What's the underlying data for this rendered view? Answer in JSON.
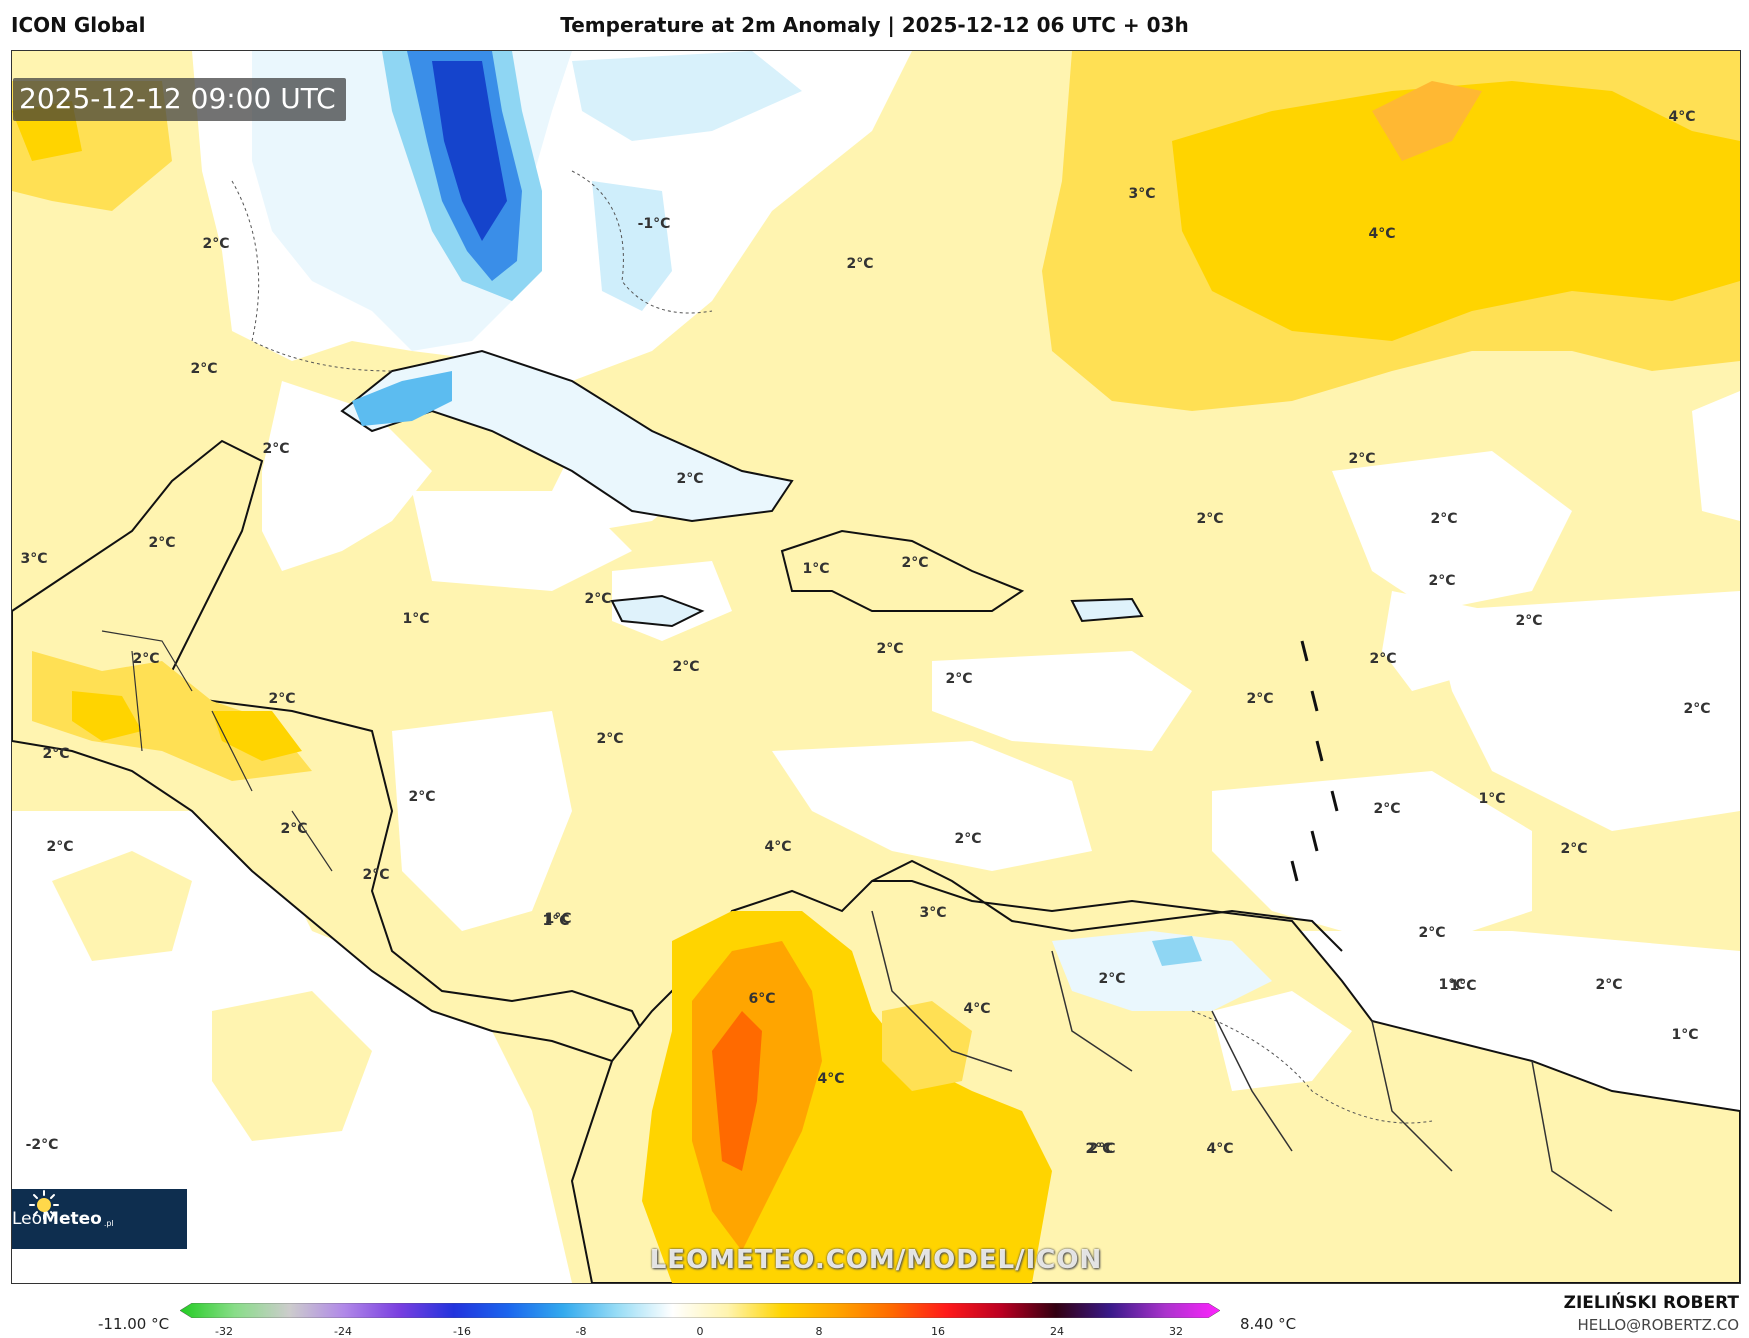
{
  "header": {
    "model": "ICON Global",
    "title": "Temperature at 2m Anomaly | 2025-12-12 06 UTC + 03h"
  },
  "map": {
    "valid_time": "2025-12-12 09:00 UTC",
    "watermark": "LEOMETEO.COM/MODEL/ICON",
    "logo": {
      "brand_a": "Leo",
      "brand_b": "Meteo",
      "tld": ".pl",
      "icon": "sun-icon"
    },
    "labels": [
      {
        "text": "4°C"
      },
      {
        "text": "3°C"
      },
      {
        "text": "4°C"
      },
      {
        "text": "-1°C"
      },
      {
        "text": "2°C"
      },
      {
        "text": "2°C"
      },
      {
        "text": "2°C"
      },
      {
        "text": "2°C"
      },
      {
        "text": "2°C"
      },
      {
        "text": "2°C"
      },
      {
        "text": "3°C"
      },
      {
        "text": "2°C"
      },
      {
        "text": "2°C"
      },
      {
        "text": "1°C"
      },
      {
        "text": "2°C"
      },
      {
        "text": "2°C"
      },
      {
        "text": "2°C"
      },
      {
        "text": "2°C"
      },
      {
        "text": "1°C"
      },
      {
        "text": "2°C"
      },
      {
        "text": "2°C"
      },
      {
        "text": "2°C"
      },
      {
        "text": "2°C"
      },
      {
        "text": "2°C"
      },
      {
        "text": "2°C"
      },
      {
        "text": "2°C"
      },
      {
        "text": "2°C"
      },
      {
        "text": "2°C"
      },
      {
        "text": "2°C"
      },
      {
        "text": "2°C"
      },
      {
        "text": "2°C"
      },
      {
        "text": "2°C"
      },
      {
        "text": "2°C"
      },
      {
        "text": "1°C"
      },
      {
        "text": "2°C"
      },
      {
        "text": "2°C"
      },
      {
        "text": "1°C"
      },
      {
        "text": "2°C"
      },
      {
        "text": "4°C"
      },
      {
        "text": "2°C"
      },
      {
        "text": "3°C"
      },
      {
        "text": "2°C"
      },
      {
        "text": "1°C"
      },
      {
        "text": "2°C"
      },
      {
        "text": "2°C"
      },
      {
        "text": "1°C"
      },
      {
        "text": "1°C"
      },
      {
        "text": "6°C"
      },
      {
        "text": "4°C"
      },
      {
        "text": "2°C"
      },
      {
        "text": "1°C"
      },
      {
        "text": "4°C"
      },
      {
        "text": "-2°C"
      },
      {
        "text": "2°C"
      },
      {
        "text": "4°C"
      }
    ]
  },
  "legend": {
    "min_value": "-11.00 °C",
    "max_value": "8.40 °C",
    "ticks": [
      "-32",
      "-24",
      "-16",
      "-8",
      "0",
      "8",
      "16",
      "24",
      "32"
    ],
    "colors": [
      "#22cc22",
      "#88dd88",
      "#cccccc",
      "#b088e8",
      "#7a3fe0",
      "#2233dd",
      "#1b66ee",
      "#33aaee",
      "#99ddf6",
      "#ffffff",
      "#fff4b0",
      "#ffd400",
      "#ffa500",
      "#ff6a00",
      "#ff1a1a",
      "#bb0022",
      "#330011",
      "#3a1a8a",
      "#aa33cc",
      "#ff22ff"
    ]
  },
  "credit": {
    "name": "ZIELIŃSKI ROBERT",
    "email": "HELLO@ROBERTZ.CO"
  }
}
